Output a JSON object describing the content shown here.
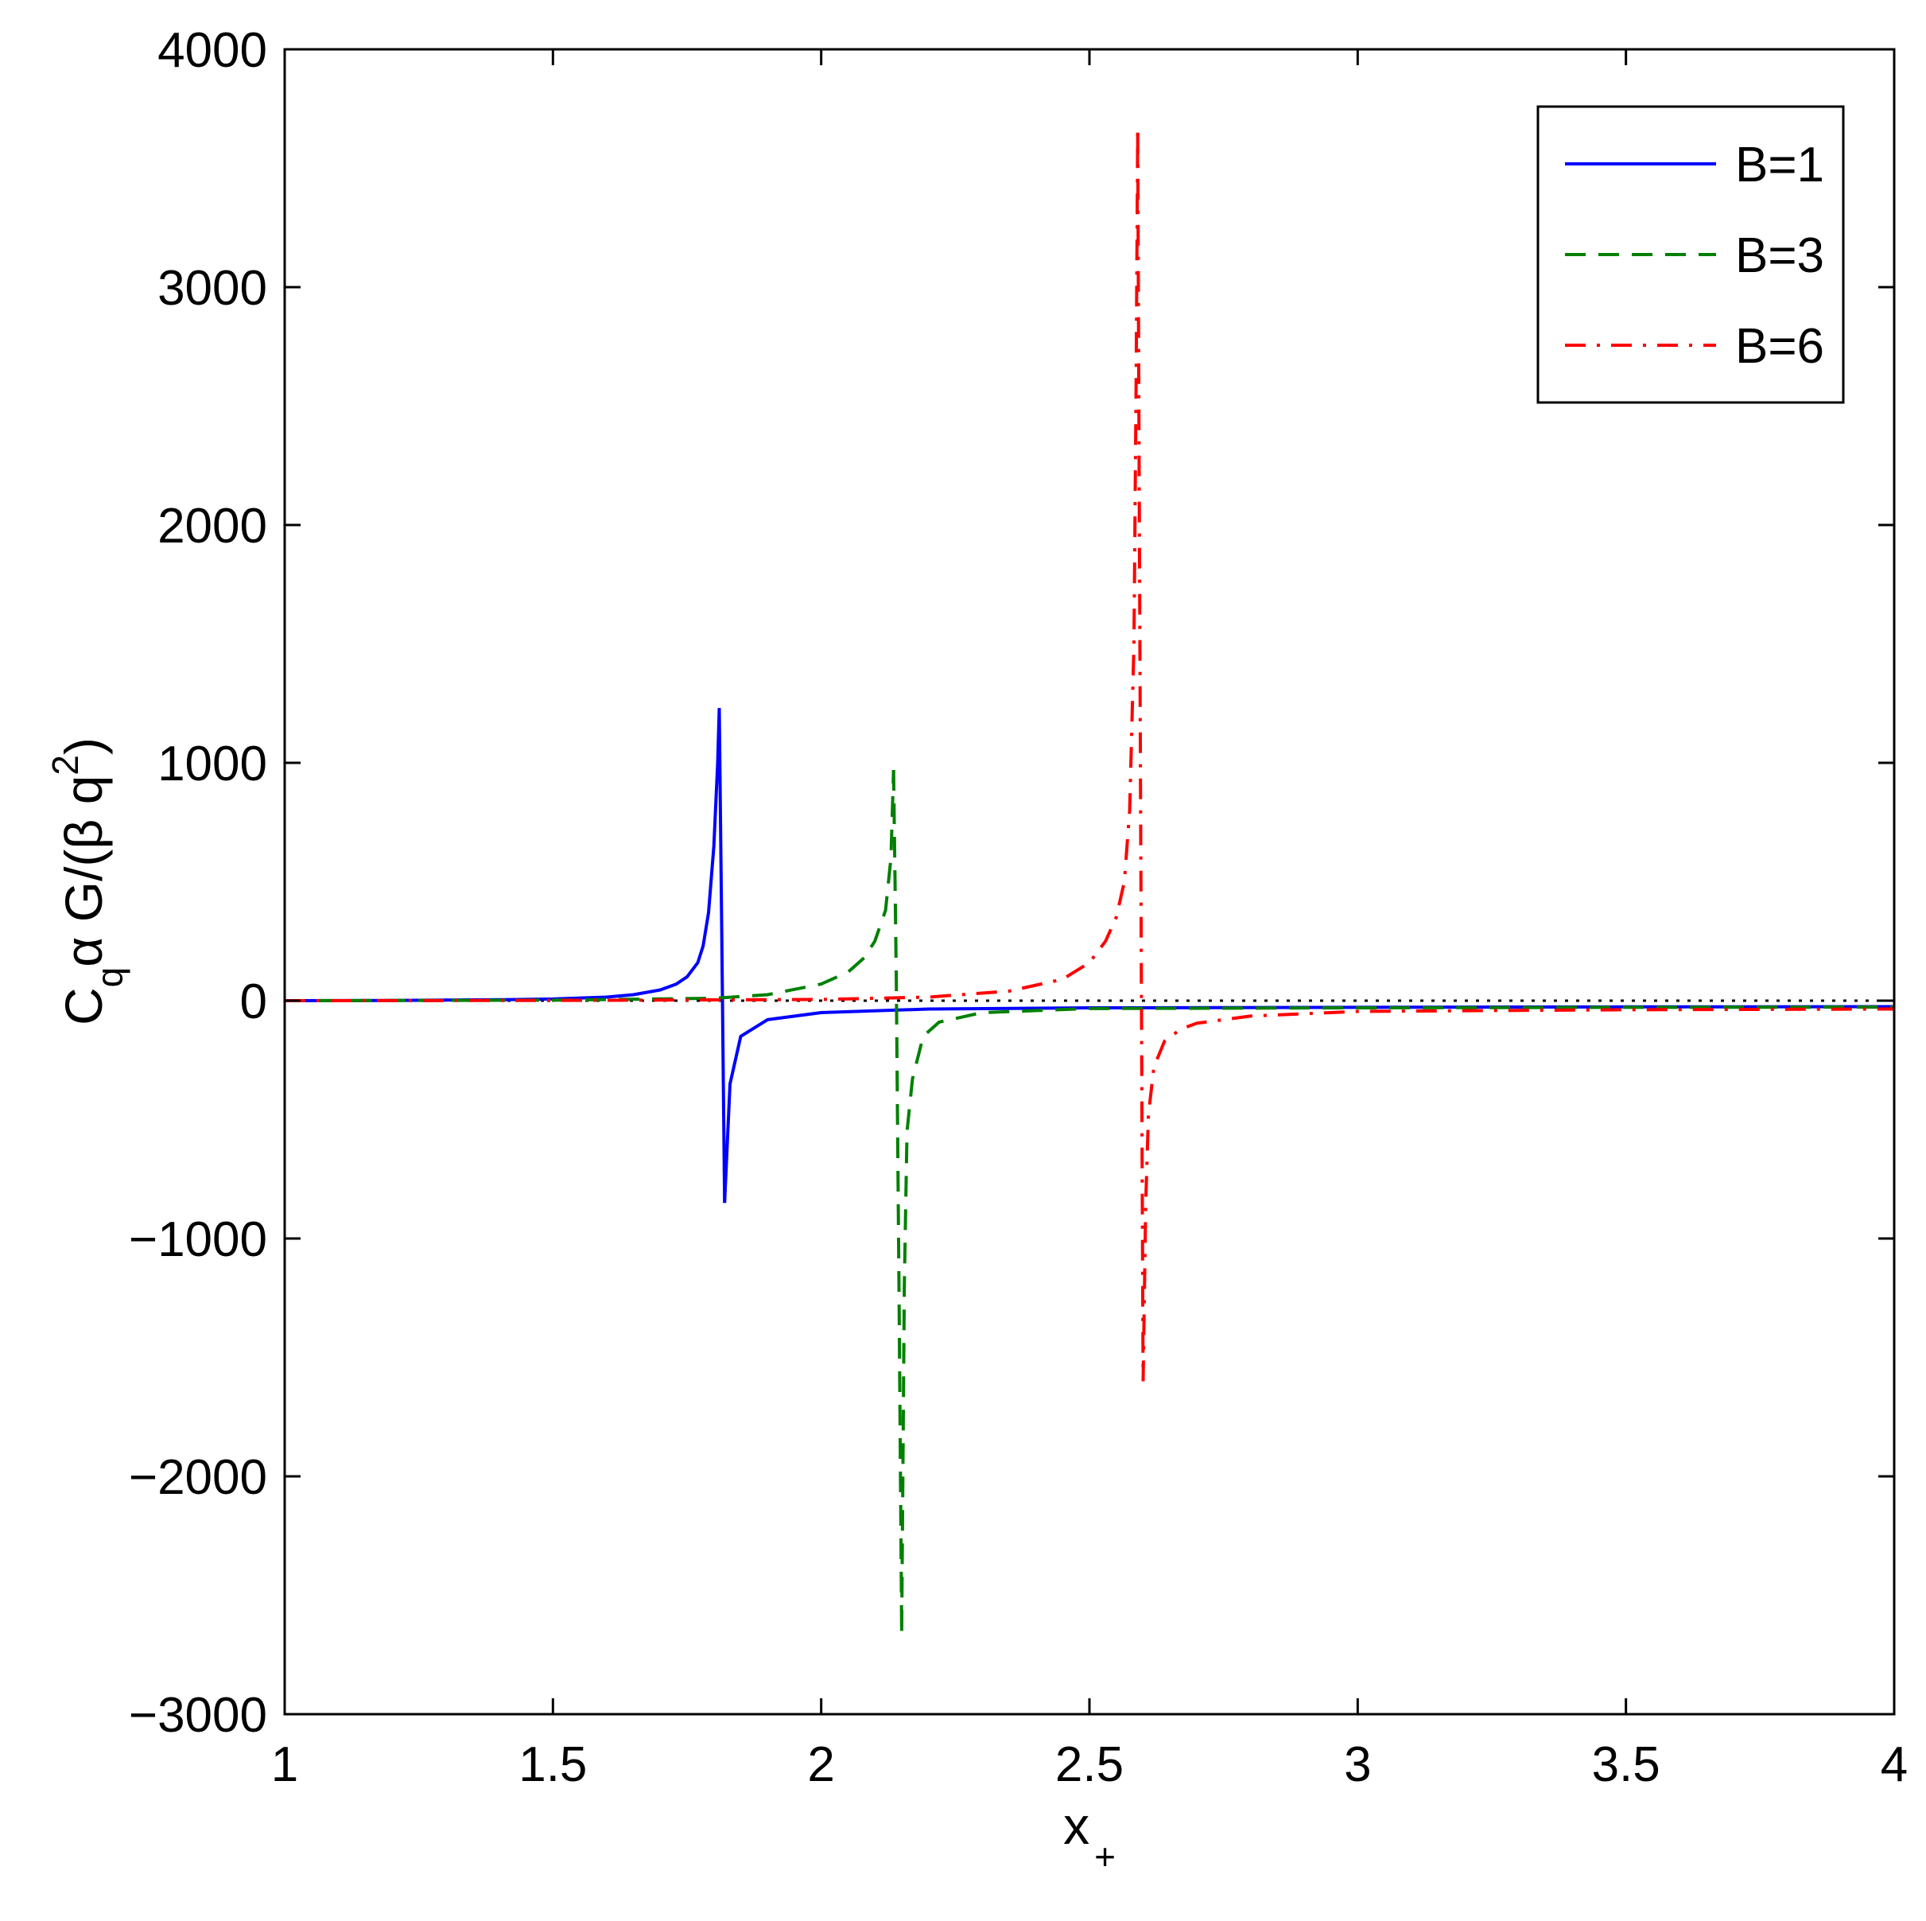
{
  "chart_data": {
    "type": "line",
    "title": "",
    "xlabel": "x",
    "xlabel_subscript": "+",
    "ylabel": {
      "base": "C",
      "sub": "q",
      "rest": "α G/(β q",
      "sup": "2",
      "close": ")"
    },
    "xlim": [
      1,
      4
    ],
    "ylim": [
      -3000,
      4000
    ],
    "xticks": [
      1,
      1.5,
      2,
      2.5,
      3,
      3.5,
      4
    ],
    "xtick_labels": [
      "1",
      "1.5",
      "2",
      "2.5",
      "3",
      "3.5",
      "4"
    ],
    "yticks": [
      -3000,
      -2000,
      -1000,
      0,
      1000,
      2000,
      3000,
      4000
    ],
    "ytick_labels": [
      "−3000",
      "−2000",
      "−1000",
      "0",
      "1000",
      "2000",
      "3000",
      "4000"
    ],
    "grid": false,
    "legend_position": "top-right",
    "series": [
      {
        "name": "B=1",
        "color": "#0000ff",
        "style": "solid",
        "segments": [
          {
            "x": [
              1.0,
              1.2,
              1.4,
              1.5,
              1.6,
              1.65,
              1.7,
              1.73,
              1.75,
              1.77,
              1.78,
              1.79,
              1.8,
              1.807,
              1.81
            ],
            "y": [
              0,
              1,
              4,
              7,
              15,
              25,
              45,
              70,
              100,
              160,
              230,
              370,
              650,
              1000,
              1230
            ]
          },
          {
            "x": [
              1.81,
              1.815,
              1.82
            ],
            "y": [
              1230,
              200,
              -850
            ]
          },
          {
            "x": [
              1.82,
              1.83,
              1.85,
              1.9,
              2.0,
              2.2,
              2.5,
              3.0,
              3.5,
              4.0
            ],
            "y": [
              -850,
              -350,
              -150,
              -80,
              -50,
              -35,
              -30,
              -28,
              -26,
              -25
            ]
          }
        ]
      },
      {
        "name": "B=3",
        "color": "#008000",
        "style": "dashed",
        "segments": [
          {
            "x": [
              1.0,
              1.5,
              1.8,
              1.9,
              2.0,
              2.05,
              2.08,
              2.1,
              2.12,
              2.13,
              2.135
            ],
            "y": [
              0,
              2,
              10,
              25,
              70,
              120,
              180,
              250,
              380,
              600,
              970
            ]
          },
          {
            "x": [
              2.135,
              2.14,
              2.145,
              2.15
            ],
            "y": [
              970,
              100,
              -1200,
              -2650
            ]
          },
          {
            "x": [
              2.15,
              2.155,
              2.16,
              2.17,
              2.19,
              2.22,
              2.3,
              2.5,
              3.0,
              3.5,
              4.0
            ],
            "y": [
              -2650,
              -1200,
              -550,
              -330,
              -150,
              -90,
              -50,
              -33,
              -30,
              -28,
              -27
            ]
          }
        ]
      },
      {
        "name": "B=6",
        "color": "#ff0000",
        "style": "dashdot",
        "segments": [
          {
            "x": [
              1.0,
              1.5,
              2.0,
              2.2,
              2.35,
              2.45,
              2.5,
              2.53,
              2.55,
              2.565,
              2.575,
              2.583,
              2.587,
              2.59
            ],
            "y": [
              0,
              1,
              5,
              15,
              40,
              90,
              160,
              250,
              350,
              500,
              800,
              1500,
              2600,
              3650
            ]
          },
          {
            "x": [
              2.59,
              2.595,
              2.6
            ],
            "y": [
              3650,
              1000,
              -1600
            ]
          },
          {
            "x": [
              2.6,
              2.605,
              2.61,
              2.62,
              2.64,
              2.67,
              2.7,
              2.8,
              3.0,
              3.5,
              4.0
            ],
            "y": [
              -1600,
              -850,
              -480,
              -280,
              -170,
              -120,
              -95,
              -65,
              -45,
              -38,
              -35
            ]
          }
        ]
      },
      {
        "name": "",
        "color": "#000000",
        "style": "dotted",
        "segments": [
          {
            "x": [
              1.0,
              4.0
            ],
            "y": [
              0,
              0
            ]
          }
        ]
      }
    ]
  }
}
